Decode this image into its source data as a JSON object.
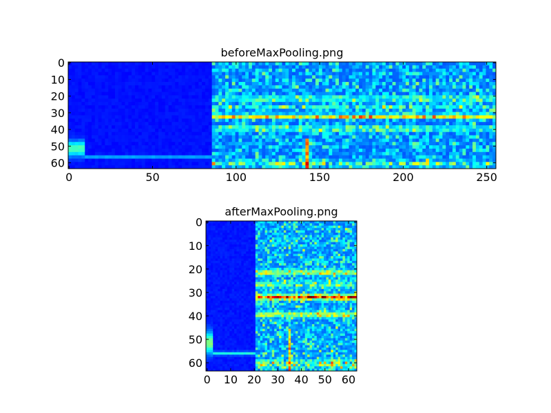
{
  "chart_data": [
    {
      "type": "image",
      "title": "beforeMaxPooling.png",
      "xlim": [
        -0.5,
        255.5
      ],
      "ylim": [
        63.5,
        -0.5
      ],
      "xticks": [
        0,
        50,
        100,
        150,
        200,
        250
      ],
      "yticks": [
        0,
        10,
        20,
        30,
        40,
        50,
        60
      ]
    },
    {
      "type": "image",
      "title": "afterMaxPooling.png",
      "xlim": [
        -0.5,
        63.5
      ],
      "ylim": [
        63.5,
        -0.5
      ],
      "xticks": [
        0,
        10,
        20,
        30,
        40,
        50,
        60
      ],
      "yticks": [
        0,
        10,
        20,
        30,
        40,
        50,
        60
      ]
    }
  ]
}
